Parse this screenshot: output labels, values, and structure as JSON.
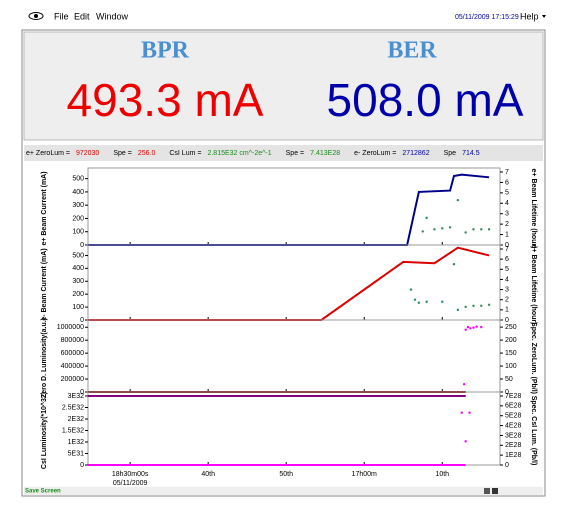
{
  "menu": {
    "items": [
      "File",
      "Edit",
      "Window"
    ],
    "datetime": "05/11/2009 17:15:29",
    "help": "Help"
  },
  "header": {
    "left_title": "BPR",
    "right_title": "BER",
    "left_value": "493.3 mA",
    "right_value": "508.0 mA"
  },
  "status": [
    {
      "label": "e+ ZeroLum =",
      "value": "972030",
      "color": "#dd0000"
    },
    {
      "label": "Spe =",
      "value": "256.0",
      "color": "#dd0000"
    },
    {
      "label": "CsI Lum =",
      "value": "2.815E32 cm^-2e^-1",
      "color": "#1a8a1a"
    },
    {
      "label": "Spe =",
      "value": "7.413E28",
      "color": "#1a8a1a"
    },
    {
      "label": "e- ZeroLum =",
      "value": "2712862",
      "color": "#0000aa"
    },
    {
      "label": "Spe",
      "value": "714.5",
      "color": "#0000aa"
    }
  ],
  "footer": {
    "text": "Save Screen"
  },
  "chart_data": [
    {
      "type": "line",
      "ylabel": "e+ Beam Current (mA)",
      "y2label": "e+ Beam Lifetime (hour)",
      "xlim": [
        24.6,
        77.4
      ],
      "ylim": [
        0,
        550
      ],
      "yticks": [
        0,
        100,
        200,
        300,
        400,
        500
      ],
      "y2lim": [
        0,
        7
      ],
      "y2ticks": [
        0,
        1,
        2,
        3,
        4,
        5,
        6,
        7
      ],
      "series": [
        {
          "color": "#00008b",
          "mode": "line",
          "x": [
            24.6,
            65.5,
            67,
            71,
            71.5,
            72.5,
            76
          ],
          "values": [
            0,
            0,
            400,
            410,
            520,
            530,
            510
          ]
        },
        {
          "color": "#2e8b57",
          "mode": "markers",
          "axis": "y2",
          "x": [
            67.5,
            68,
            69,
            70,
            71,
            72,
            73,
            74,
            75,
            76
          ],
          "values": [
            1.3,
            2.6,
            1.5,
            1.6,
            1.7,
            4.3,
            1.2,
            1.5,
            1.5,
            1.5
          ]
        }
      ]
    },
    {
      "type": "line",
      "ylabel": "e- Beam Current (mA)",
      "y2label": "e+ Beam Lifetime (hour)",
      "xlim": [
        24.6,
        77.4
      ],
      "ylim": [
        0,
        550
      ],
      "yticks": [
        0,
        100,
        200,
        300,
        400,
        500
      ],
      "y2lim": [
        0,
        7
      ],
      "y2ticks": [
        0,
        1,
        2,
        3,
        4,
        5,
        6,
        7
      ],
      "series": [
        {
          "color": "#dd0000",
          "mode": "line",
          "x": [
            24.6,
            54.5,
            65,
            69,
            72,
            76
          ],
          "values": [
            0,
            0,
            450,
            440,
            560,
            500
          ]
        },
        {
          "color": "#2e8b57",
          "mode": "markers",
          "axis": "y2",
          "x": [
            66,
            66.5,
            67,
            68,
            70,
            71.5,
            72,
            73,
            74,
            75,
            76
          ],
          "values": [
            3,
            2,
            1.7,
            1.8,
            1.8,
            5.5,
            1.0,
            1.3,
            1.4,
            1.4,
            1.5
          ]
        }
      ]
    },
    {
      "type": "line",
      "ylabel": "Zero D. Luminosity(a.u.)",
      "y2label": "Spec. ZeroLum. (Pb/l)",
      "xlim": [
        24.6,
        77.4
      ],
      "ylim": [
        0,
        1050000
      ],
      "yticks": [
        0,
        200000,
        400000,
        600000,
        800000,
        1000000
      ],
      "y2lim": [
        0,
        262
      ],
      "y2ticks": [
        0,
        50,
        100,
        150,
        200,
        250
      ],
      "series": [
        {
          "color": "#800000",
          "mode": "line",
          "x": [
            24.6,
            73
          ],
          "values": [
            0,
            0
          ]
        },
        {
          "color": "#ff00ff",
          "mode": "markers",
          "axis": "y2",
          "x": [
            73,
            73.3,
            73.6,
            74,
            74.4,
            75,
            72.8
          ],
          "values": [
            240,
            250,
            245,
            248,
            252,
            250,
            30
          ]
        }
      ]
    },
    {
      "type": "line",
      "ylabel": "CsI Luminosity(*10^32)",
      "y2label": "Spec. CsI Lum. (Pb/l)",
      "xlim": [
        24.6,
        77.4
      ],
      "ylim": [
        0,
        3e+32
      ],
      "yticks": [
        0,
        {
          "value": 5e+31,
          "label": "5E31"
        },
        {
          "value": 1e+32,
          "label": "1E32"
        },
        {
          "value": 1.5e+32,
          "label": "1.5E32"
        },
        {
          "value": 2e+32,
          "label": "2E32"
        },
        {
          "value": 2.5e+32,
          "label": "2.5E32"
        },
        {
          "value": 3e+32,
          "label": "3E32"
        }
      ],
      "y2lim": [
        0,
        7e+28
      ],
      "y2ticks": [
        0,
        {
          "value": 1e+28,
          "label": "1E28"
        },
        {
          "value": 2e+28,
          "label": "2E28"
        },
        {
          "value": 3e+28,
          "label": "3E28"
        },
        {
          "value": 4e+28,
          "label": "4E28"
        },
        {
          "value": 5e+28,
          "label": "5E28"
        },
        {
          "value": 6e+28,
          "label": "6E28"
        },
        {
          "value": 7e+28,
          "label": "7E28"
        }
      ],
      "xticks": [
        {
          "value": 30,
          "label": "18h30m00s"
        },
        {
          "value": 40,
          "label": "40th"
        },
        {
          "value": 50,
          "label": "50th"
        },
        {
          "value": 60,
          "label": "17h00m"
        },
        {
          "value": 70,
          "label": "10th"
        }
      ],
      "date": "05/11/2009",
      "series": [
        {
          "color": "#800080",
          "mode": "line",
          "x": [
            24.6,
            73
          ],
          "values": [
            3e+32,
            3e+32
          ]
        },
        {
          "color": "#ff00ff",
          "mode": "line",
          "axis": "y2",
          "x": [
            24.6,
            73
          ],
          "values": [
            0,
            0
          ]
        },
        {
          "color": "#ff00ff",
          "mode": "markers",
          "axis": "y2",
          "x": [
            72.5,
            73,
            73.5
          ],
          "values": [
            5.3e+28,
            2.4e+28,
            5.3e+28
          ]
        }
      ]
    }
  ]
}
